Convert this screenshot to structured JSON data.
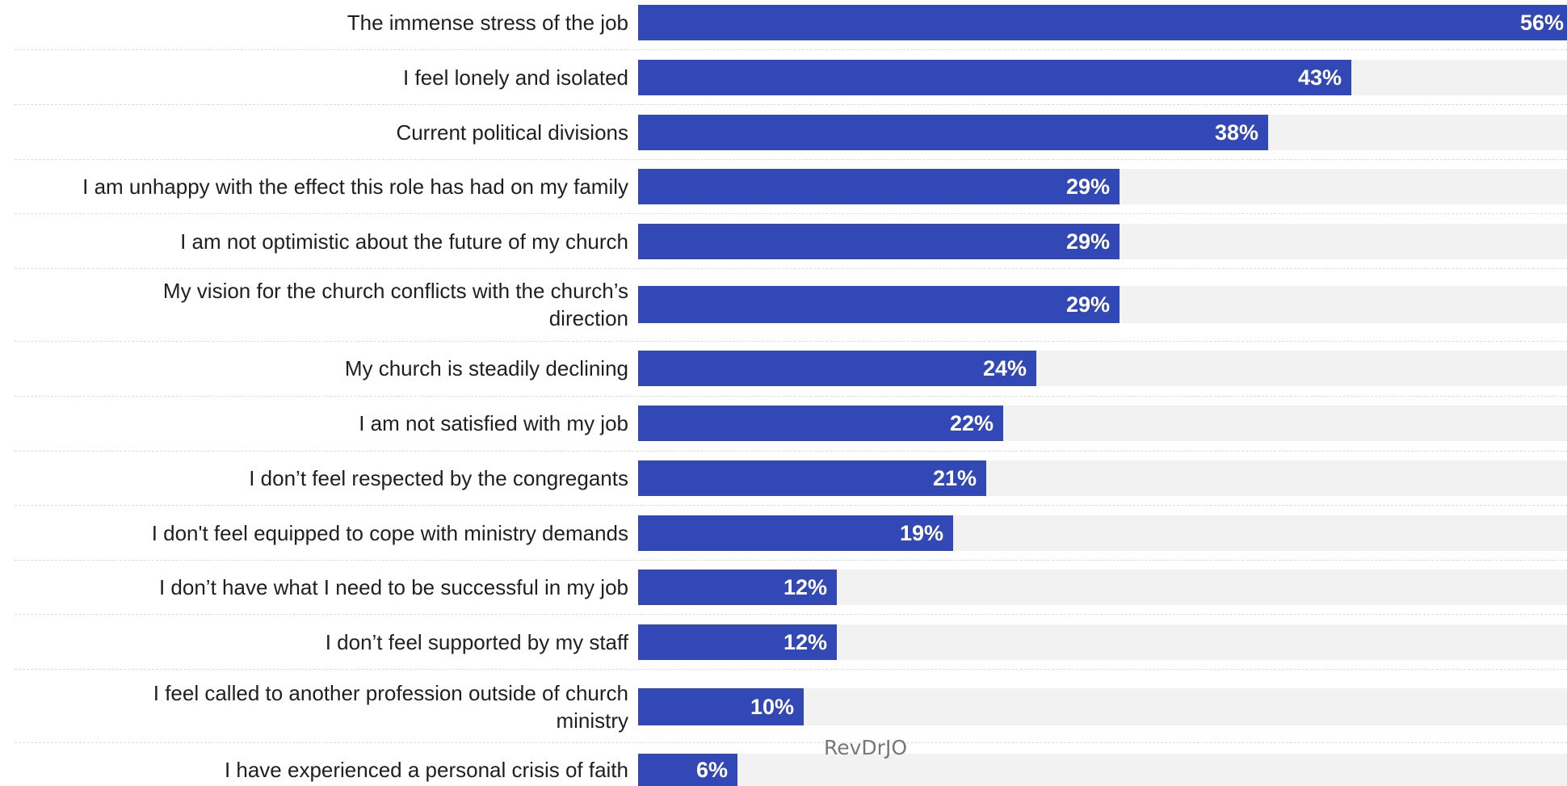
{
  "chart_data": {
    "type": "bar",
    "orientation": "horizontal",
    "categories": [
      "The immense stress of the job",
      "I feel lonely and isolated",
      "Current political divisions",
      "I am unhappy with the effect this role has had on my family",
      "I am not optimistic about the future of my church",
      "My vision for the church conflicts with the church’s direction",
      "My church is steadily declining",
      "I am not satisfied with my job",
      "I don’t feel respected by the congregants",
      "I don't feel equipped to cope with ministry demands",
      "I don’t have what I need to be successful in my job",
      "I don’t feel supported by my staff",
      "I feel called to another profession outside of church ministry",
      "I have experienced a personal crisis of faith"
    ],
    "values": [
      56,
      43,
      38,
      29,
      29,
      29,
      24,
      22,
      21,
      19,
      12,
      12,
      10,
      6
    ],
    "value_labels": [
      "56%",
      "43%",
      "38%",
      "29%",
      "29%",
      "29%",
      "24%",
      "22%",
      "21%",
      "19%",
      "12%",
      "12%",
      "10%",
      "6%"
    ],
    "xlim": [
      0,
      56
    ],
    "grid": false,
    "legend": "none",
    "colors": {
      "bar": "#3248b6",
      "track": "#f2f2f2",
      "label_text": "#1f1f1f",
      "value_text": "#ffffff"
    }
  },
  "watermark": "RevDrJO"
}
